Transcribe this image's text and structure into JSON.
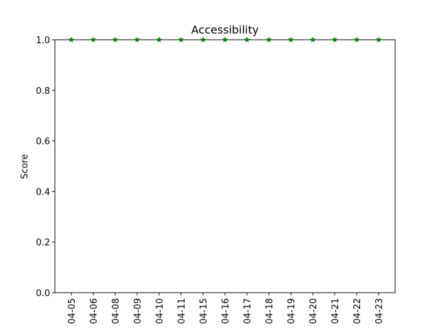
{
  "chart_data": {
    "type": "scatter",
    "title": "Accessibility",
    "xlabel": "",
    "ylabel": "Score",
    "categories": [
      "04-05",
      "04-06",
      "04-08",
      "04-09",
      "04-10",
      "04-11",
      "04-15",
      "04-16",
      "04-17",
      "04-18",
      "04-19",
      "04-20",
      "04-21",
      "04-22",
      "04-23"
    ],
    "series": [
      {
        "values": [
          1,
          1,
          1,
          1,
          1,
          1,
          1,
          1,
          1,
          1,
          1,
          1,
          1,
          1,
          1
        ]
      }
    ],
    "ylim": [
      0,
      1
    ],
    "yticks": [
      "0.0",
      "0.2",
      "0.4",
      "0.6",
      "0.8",
      "1.0"
    ],
    "grid": false,
    "legend": "none",
    "marker": "star",
    "colors": {
      "marker": "#008000",
      "axes": "#000000"
    }
  }
}
